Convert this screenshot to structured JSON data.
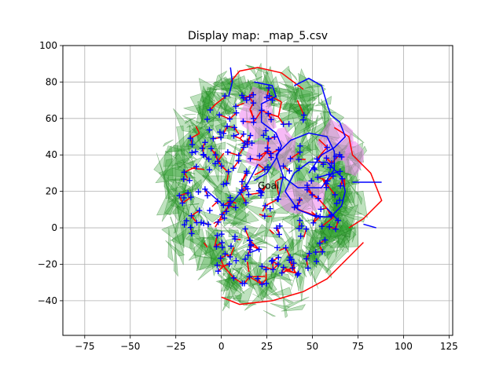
{
  "window": {
    "title": "Display map: _map_5.csv"
  },
  "chart_data": {
    "type": "scatter",
    "title": "Display map: _map_5.csv",
    "xlabel": "",
    "ylabel": "",
    "xlim": [
      -87,
      127
    ],
    "ylim": [
      -59,
      100
    ],
    "xticks": [
      -75,
      -50,
      -25,
      0,
      25,
      50,
      75,
      100,
      125
    ],
    "yticks": [
      -40,
      -20,
      0,
      20,
      40,
      60,
      80,
      100
    ],
    "grid": true,
    "annotations": [
      {
        "text": "Goal",
        "x": 20,
        "y": 23
      }
    ],
    "layers": [
      {
        "kind": "obstacle-triangles",
        "color": "#2ca02c",
        "fill_opacity": 0.3
      },
      {
        "kind": "free-space-regions",
        "color": "#ee82ee",
        "fill_opacity": 0.6
      },
      {
        "kind": "roadmap-edges",
        "color": "#ff0000"
      },
      {
        "kind": "planned-paths",
        "color": "#0000ff"
      }
    ],
    "map_region": {
      "center": [
        22,
        23
      ],
      "radius_x": 50,
      "radius_y": 60
    },
    "colors": {
      "obstacle_fill": "#2ca02c",
      "obstacle_edge": "#1e7a1e",
      "region_fill": "#ee82ee",
      "red_edges": "#ff0000",
      "blue_paths": "#0000ff",
      "grid": "#b0b0b0"
    }
  }
}
